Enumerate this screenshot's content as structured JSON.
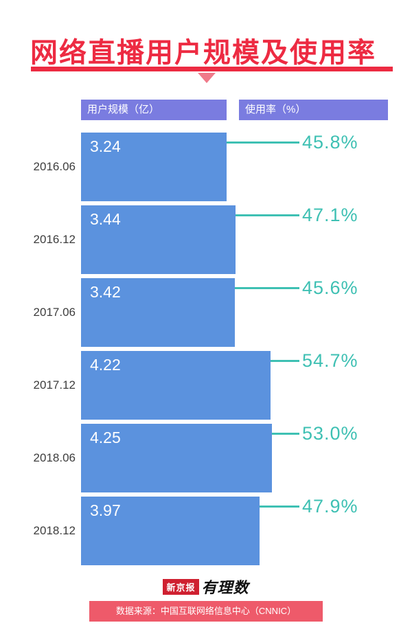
{
  "header": {
    "title": "网络直播用户规模及使用率"
  },
  "legend": {
    "user_scale_label": "用户规模（亿）",
    "usage_rate_label": "使用率（%）"
  },
  "chart_data": {
    "type": "bar",
    "orientation": "horizontal",
    "title": "网络直播用户规模及使用率",
    "categories": [
      "2016.06",
      "2016.12",
      "2017.06",
      "2017.12",
      "2018.06",
      "2018.12"
    ],
    "series": [
      {
        "name": "用户规模（亿）",
        "values": [
          3.24,
          3.44,
          3.42,
          4.22,
          4.25,
          3.97
        ]
      },
      {
        "name": "使用率（%）",
        "values": [
          45.8,
          47.1,
          45.6,
          54.7,
          53.0,
          47.9
        ]
      }
    ],
    "value_labels": [
      "3.24",
      "3.44",
      "3.42",
      "4.22",
      "4.25",
      "3.97"
    ],
    "rate_labels": [
      "45.8%",
      "47.1%",
      "45.6%",
      "54.7%",
      "53.0%",
      "47.9%"
    ],
    "xlim": [
      0,
      4.7
    ],
    "grid": false,
    "legend_position": "top",
    "colors": {
      "bar": "#5b92de",
      "rate": "#3ec0b3",
      "legend_box": "#7a7ce0",
      "title": "#ed2b42",
      "source_bar": "#ee5a6a"
    }
  },
  "footer": {
    "brand_left": "新京报",
    "brand_right": "有理数",
    "source": "数据来源：中国互联网络信息中心（CNNIC）"
  }
}
